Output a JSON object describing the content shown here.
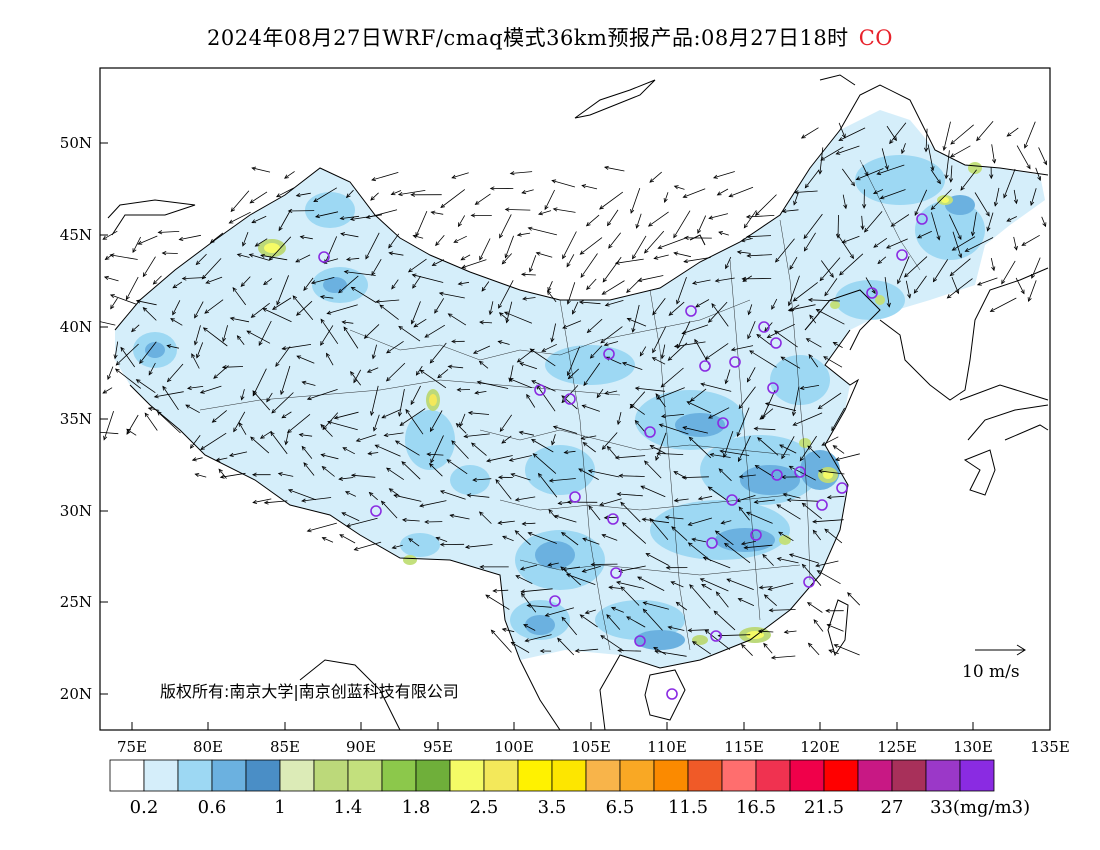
{
  "title": {
    "main": "2024年08月27日WRF/cmaq模式36km预报产品:08月27日18时",
    "species": "CO",
    "species_color": "#e8222b"
  },
  "map": {
    "lon_range": [
      73,
      135
    ],
    "lat_range": [
      18,
      54
    ],
    "lon_ticks": [
      "75E",
      "80E",
      "85E",
      "90E",
      "95E",
      "100E",
      "105E",
      "110E",
      "115E",
      "120E",
      "125E",
      "130E",
      "135E"
    ],
    "lat_ticks": [
      "50N",
      "45N",
      "40N",
      "35N",
      "30N",
      "25N",
      "20N"
    ],
    "copyright": "版权所有:南京大学|南京创蓝科技有限公司",
    "wind_scale_label": "10 m/s",
    "sites_color": "#8a2be2"
  },
  "legend": {
    "colors": [
      "#ffffff",
      "#d5eefa",
      "#9dd8f3",
      "#6bb1e0",
      "#4a8ec6",
      "#dcebb7",
      "#bcd97a",
      "#c3e07d",
      "#8cc84b",
      "#6faf3a",
      "#f5fb66",
      "#f3e85a",
      "#fff200",
      "#fde600",
      "#f8b44a",
      "#f9a824",
      "#fb8a00",
      "#f05a28",
      "#ff6e6e",
      "#f03250",
      "#f0004a",
      "#ff0000",
      "#c81884",
      "#a8305a",
      "#9b38c8",
      "#8a2be2"
    ],
    "labels": [
      "0.2",
      "0.6",
      "1",
      "1.4",
      "1.8",
      "2.5",
      "3.5",
      "6.5",
      "11.5",
      "16.5",
      "21.5",
      "27",
      "33(mg/m3)"
    ]
  }
}
